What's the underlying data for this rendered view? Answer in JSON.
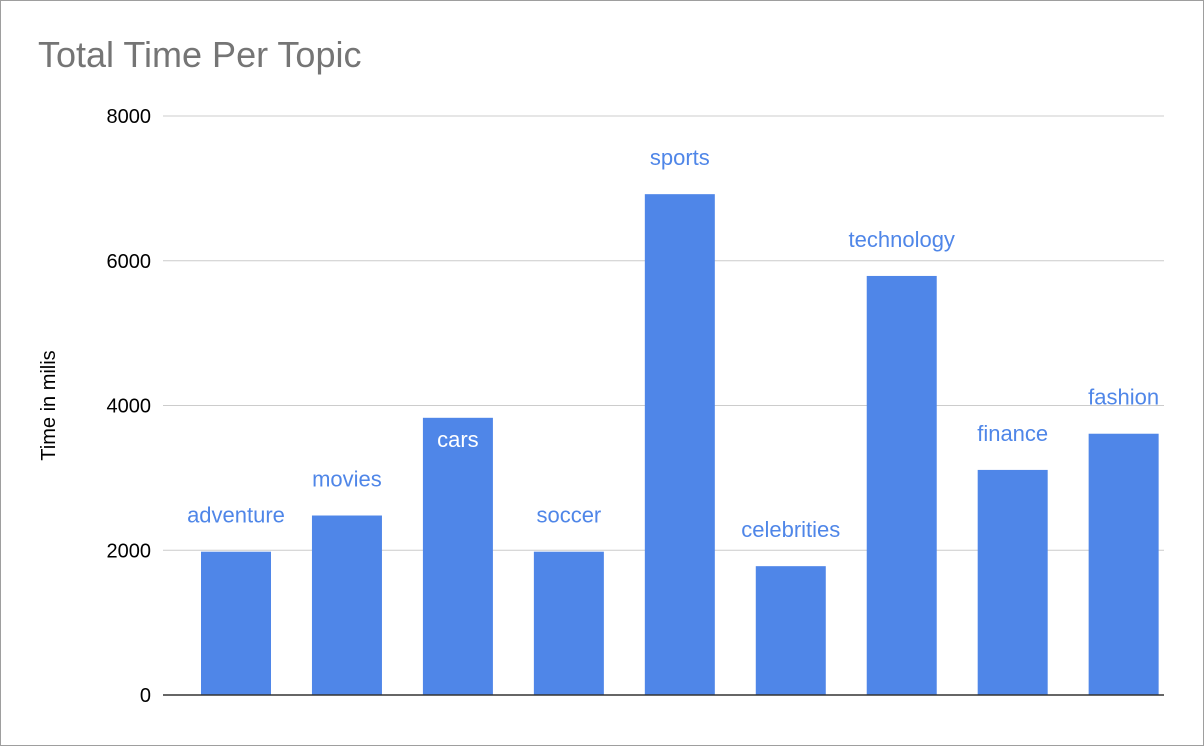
{
  "chart_data": {
    "type": "bar",
    "title": "Total Time Per Topic",
    "ylabel": "Time in milis",
    "xlabel": "",
    "ylim": [
      0,
      8000
    ],
    "yticks": [
      "0",
      "2000",
      "4000",
      "6000",
      "8000"
    ],
    "categories": [
      "adventure",
      "movies",
      "cars",
      "soccer",
      "sports",
      "celebrities",
      "technology",
      "finance",
      "fashion"
    ],
    "values": [
      1980,
      2480,
      3830,
      1980,
      6920,
      1780,
      5790,
      3110,
      3610
    ],
    "grid": true,
    "legend": "none",
    "bar_color": "#4f86e8",
    "label_color_outside": "#4f86e8",
    "label_color_inside": "#ffffff"
  }
}
